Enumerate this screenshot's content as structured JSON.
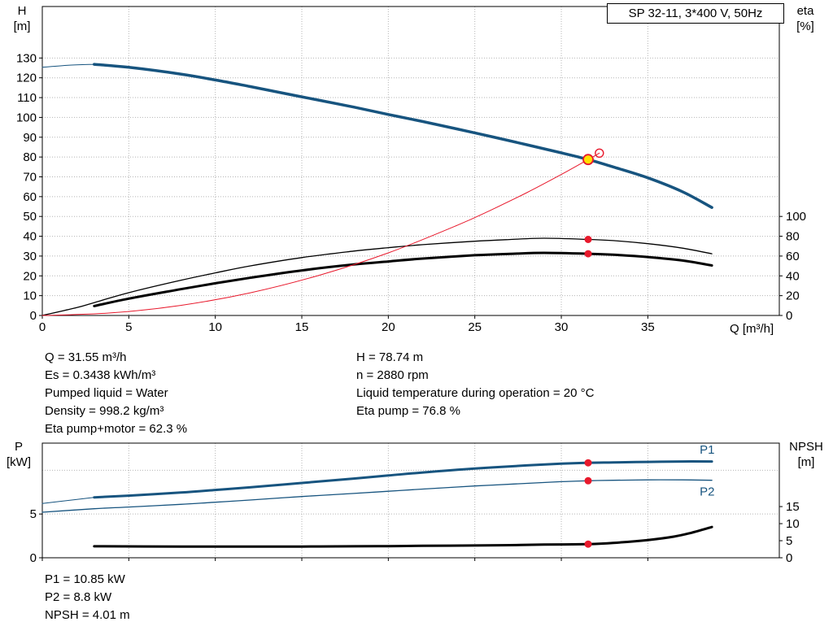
{
  "title_box": {
    "text": "SP 32-11, 3*400 V, 50Hz"
  },
  "colors": {
    "curve": "#17547f",
    "red": "#e8192c",
    "black": "#000000",
    "grid": "#b5b5b5",
    "duty_fill": "#ffe000",
    "text": "#000000"
  },
  "labels": {
    "top_left_1": "H",
    "top_left_2": "[m]",
    "top_right_1": "eta",
    "top_right_2": "[%]",
    "x_axis": "Q [m³/h]",
    "bottom_left_1": "P",
    "bottom_left_2": "[kW]",
    "bottom_right_1": "NPSH",
    "bottom_right_2": "[m]"
  },
  "info_top": {
    "left": [
      "Q = 31.55 m³/h",
      "Es = 0.3438 kWh/m³",
      "Pumped liquid = Water",
      "Density = 998.2 kg/m³",
      "Eta pump+motor = 62.3 %"
    ],
    "right": [
      "H = 78.74 m",
      "n = 2880 rpm",
      "Liquid temperature during operation = 20 °C",
      "Eta pump = 76.8 %"
    ]
  },
  "info_bottom": [
    "P1 = 10.85 kW",
    "P2 = 8.8 kW",
    "NPSH = 4.01 m"
  ],
  "chart_data": [
    {
      "name": "hq-eta-chart",
      "type": "line",
      "title": "SP 32-11, 3*400 V, 50Hz",
      "xlabel": "Q [m³/h]",
      "ylabel_left": "H [m]",
      "ylabel_right": "eta [%]",
      "xlim": [
        0,
        42.6
      ],
      "ylim_left": [
        0,
        156
      ],
      "ylim_right": [
        0,
        312
      ],
      "xticks": [
        0,
        5,
        10,
        15,
        20,
        25,
        30,
        35
      ],
      "yticks_left": [
        0,
        10,
        20,
        30,
        40,
        50,
        60,
        70,
        80,
        90,
        100,
        110,
        120,
        130
      ],
      "yticks_right": [
        0,
        20,
        40,
        60,
        80,
        100
      ],
      "grid": true,
      "series": [
        {
          "name": "head-curve-lead",
          "axis": "left",
          "color": "curve",
          "width": 1,
          "x": [
            0,
            1.5,
            3
          ],
          "y": [
            125.3,
            126.3,
            126.8
          ]
        },
        {
          "name": "head-curve",
          "axis": "left",
          "color": "curve",
          "width": 3.5,
          "x": [
            3,
            5,
            8,
            10,
            12,
            15,
            18,
            20,
            22,
            25,
            28,
            30,
            31.55,
            33,
            35,
            37,
            38.7
          ],
          "y": [
            126.8,
            125.3,
            121.9,
            118.9,
            115.6,
            110.4,
            105.2,
            101.5,
            97.9,
            92.2,
            86.2,
            82.1,
            78.74,
            75.0,
            69.5,
            62.5,
            54.5
          ]
        },
        {
          "name": "eta-pump-curve",
          "axis": "right",
          "color": "black",
          "width": 1.3,
          "x": [
            0,
            2,
            3,
            5,
            8,
            10,
            12,
            15,
            18,
            20,
            22,
            25,
            27,
            29,
            31.55,
            33,
            35,
            37,
            38.7
          ],
          "y": [
            0,
            8,
            13,
            23,
            35.5,
            43,
            50,
            58.5,
            65,
            68.5,
            71.5,
            75,
            76.7,
            78,
            76.8,
            75.6,
            72.5,
            68,
            62.3
          ]
        },
        {
          "name": "eta-pump-motor-curve",
          "axis": "right",
          "color": "black",
          "width": 3,
          "x": [
            3,
            5,
            8,
            10,
            12,
            15,
            18,
            20,
            22,
            25,
            27,
            29,
            31.55,
            33,
            35,
            37,
            38.7
          ],
          "y": [
            9.5,
            17,
            26.5,
            32.5,
            38,
            45.5,
            51.5,
            54.5,
            57.5,
            60.8,
            62.2,
            63.2,
            62.3,
            61.3,
            59,
            55.5,
            50.5
          ]
        },
        {
          "name": "system-curve",
          "axis": "left",
          "color": "red",
          "width": 1,
          "x": [
            0,
            4,
            8,
            12,
            16,
            20,
            24,
            26,
            28,
            30,
            31.55,
            32.2
          ],
          "y": [
            0,
            1.3,
            5.1,
            11.4,
            20.3,
            31.6,
            45.6,
            53.5,
            62.0,
            71.2,
            78.74,
            82.0
          ]
        }
      ],
      "markers": [
        {
          "name": "duty-point",
          "x": 31.55,
          "y": 78.74,
          "axis": "left",
          "style": "yellow"
        },
        {
          "name": "requested-duty-point",
          "x": 32.2,
          "y": 82.0,
          "axis": "left",
          "style": "open"
        },
        {
          "name": "eta-pump-point",
          "x": 31.55,
          "y": 76.8,
          "axis": "right",
          "style": "red"
        },
        {
          "name": "eta-pump-motor-point",
          "x": 31.55,
          "y": 62.3,
          "axis": "right",
          "style": "red"
        }
      ]
    },
    {
      "name": "power-npsh-chart",
      "type": "line",
      "title": "",
      "xlabel": "",
      "ylabel_left": "P [kW]",
      "ylabel_right": "NPSH [m]",
      "xlim": [
        0,
        42.6
      ],
      "ylim_left": [
        0,
        13.1
      ],
      "ylim_right": [
        0,
        33.6
      ],
      "xticks": [
        0,
        5,
        10,
        15,
        20,
        25,
        30,
        35
      ],
      "yticks_left": [
        0,
        5
      ],
      "yticks_right": [
        0,
        5,
        10,
        15
      ],
      "grid_y": [
        5,
        10
      ],
      "grid": true,
      "series": [
        {
          "name": "p1-curve-lead",
          "axis": "left",
          "color": "curve",
          "width": 1,
          "x": [
            0,
            1.5,
            3
          ],
          "y": [
            6.2,
            6.55,
            6.9
          ]
        },
        {
          "name": "p1-curve",
          "axis": "left",
          "color": "curve",
          "width": 3,
          "x": [
            3,
            5,
            8,
            10,
            12,
            15,
            18,
            20,
            22,
            25,
            28,
            30,
            31.55,
            33,
            35,
            37,
            38.7
          ],
          "y": [
            6.9,
            7.1,
            7.45,
            7.75,
            8.05,
            8.55,
            9.05,
            9.4,
            9.75,
            10.2,
            10.55,
            10.75,
            10.85,
            10.9,
            10.95,
            11.0,
            11.0
          ]
        },
        {
          "name": "p2-curve",
          "axis": "left",
          "color": "curve",
          "width": 1.3,
          "x": [
            0,
            3,
            5,
            8,
            10,
            12,
            15,
            18,
            20,
            22,
            25,
            28,
            30,
            31.55,
            33,
            35,
            37,
            38.7
          ],
          "y": [
            5.2,
            5.6,
            5.8,
            6.1,
            6.35,
            6.6,
            7.0,
            7.35,
            7.6,
            7.85,
            8.2,
            8.5,
            8.7,
            8.8,
            8.85,
            8.9,
            8.9,
            8.85
          ]
        },
        {
          "name": "npsh-curve",
          "axis": "right",
          "color": "black",
          "width": 3,
          "x": [
            3,
            8,
            12,
            15,
            18,
            20,
            22,
            25,
            27,
            29,
            31.55,
            33,
            35,
            36.5,
            37.5,
            38.7
          ],
          "y": [
            3.35,
            3.3,
            3.3,
            3.3,
            3.35,
            3.4,
            3.5,
            3.6,
            3.7,
            3.85,
            4.01,
            4.35,
            5.2,
            6.2,
            7.3,
            9.0
          ]
        }
      ],
      "markers": [
        {
          "name": "p1-point",
          "x": 31.55,
          "y": 10.85,
          "axis": "left",
          "style": "red"
        },
        {
          "name": "p2-point",
          "x": 31.55,
          "y": 8.8,
          "axis": "left",
          "style": "red"
        },
        {
          "name": "npsh-point",
          "x": 31.55,
          "y": 4.01,
          "axis": "right",
          "style": "red"
        }
      ],
      "curve_labels": [
        {
          "text": "P1",
          "x": 38.0,
          "y": 11.9,
          "axis": "left",
          "color": "curve"
        },
        {
          "text": "P2",
          "x": 38.0,
          "y": 7.1,
          "axis": "left",
          "color": "curve"
        }
      ]
    }
  ]
}
